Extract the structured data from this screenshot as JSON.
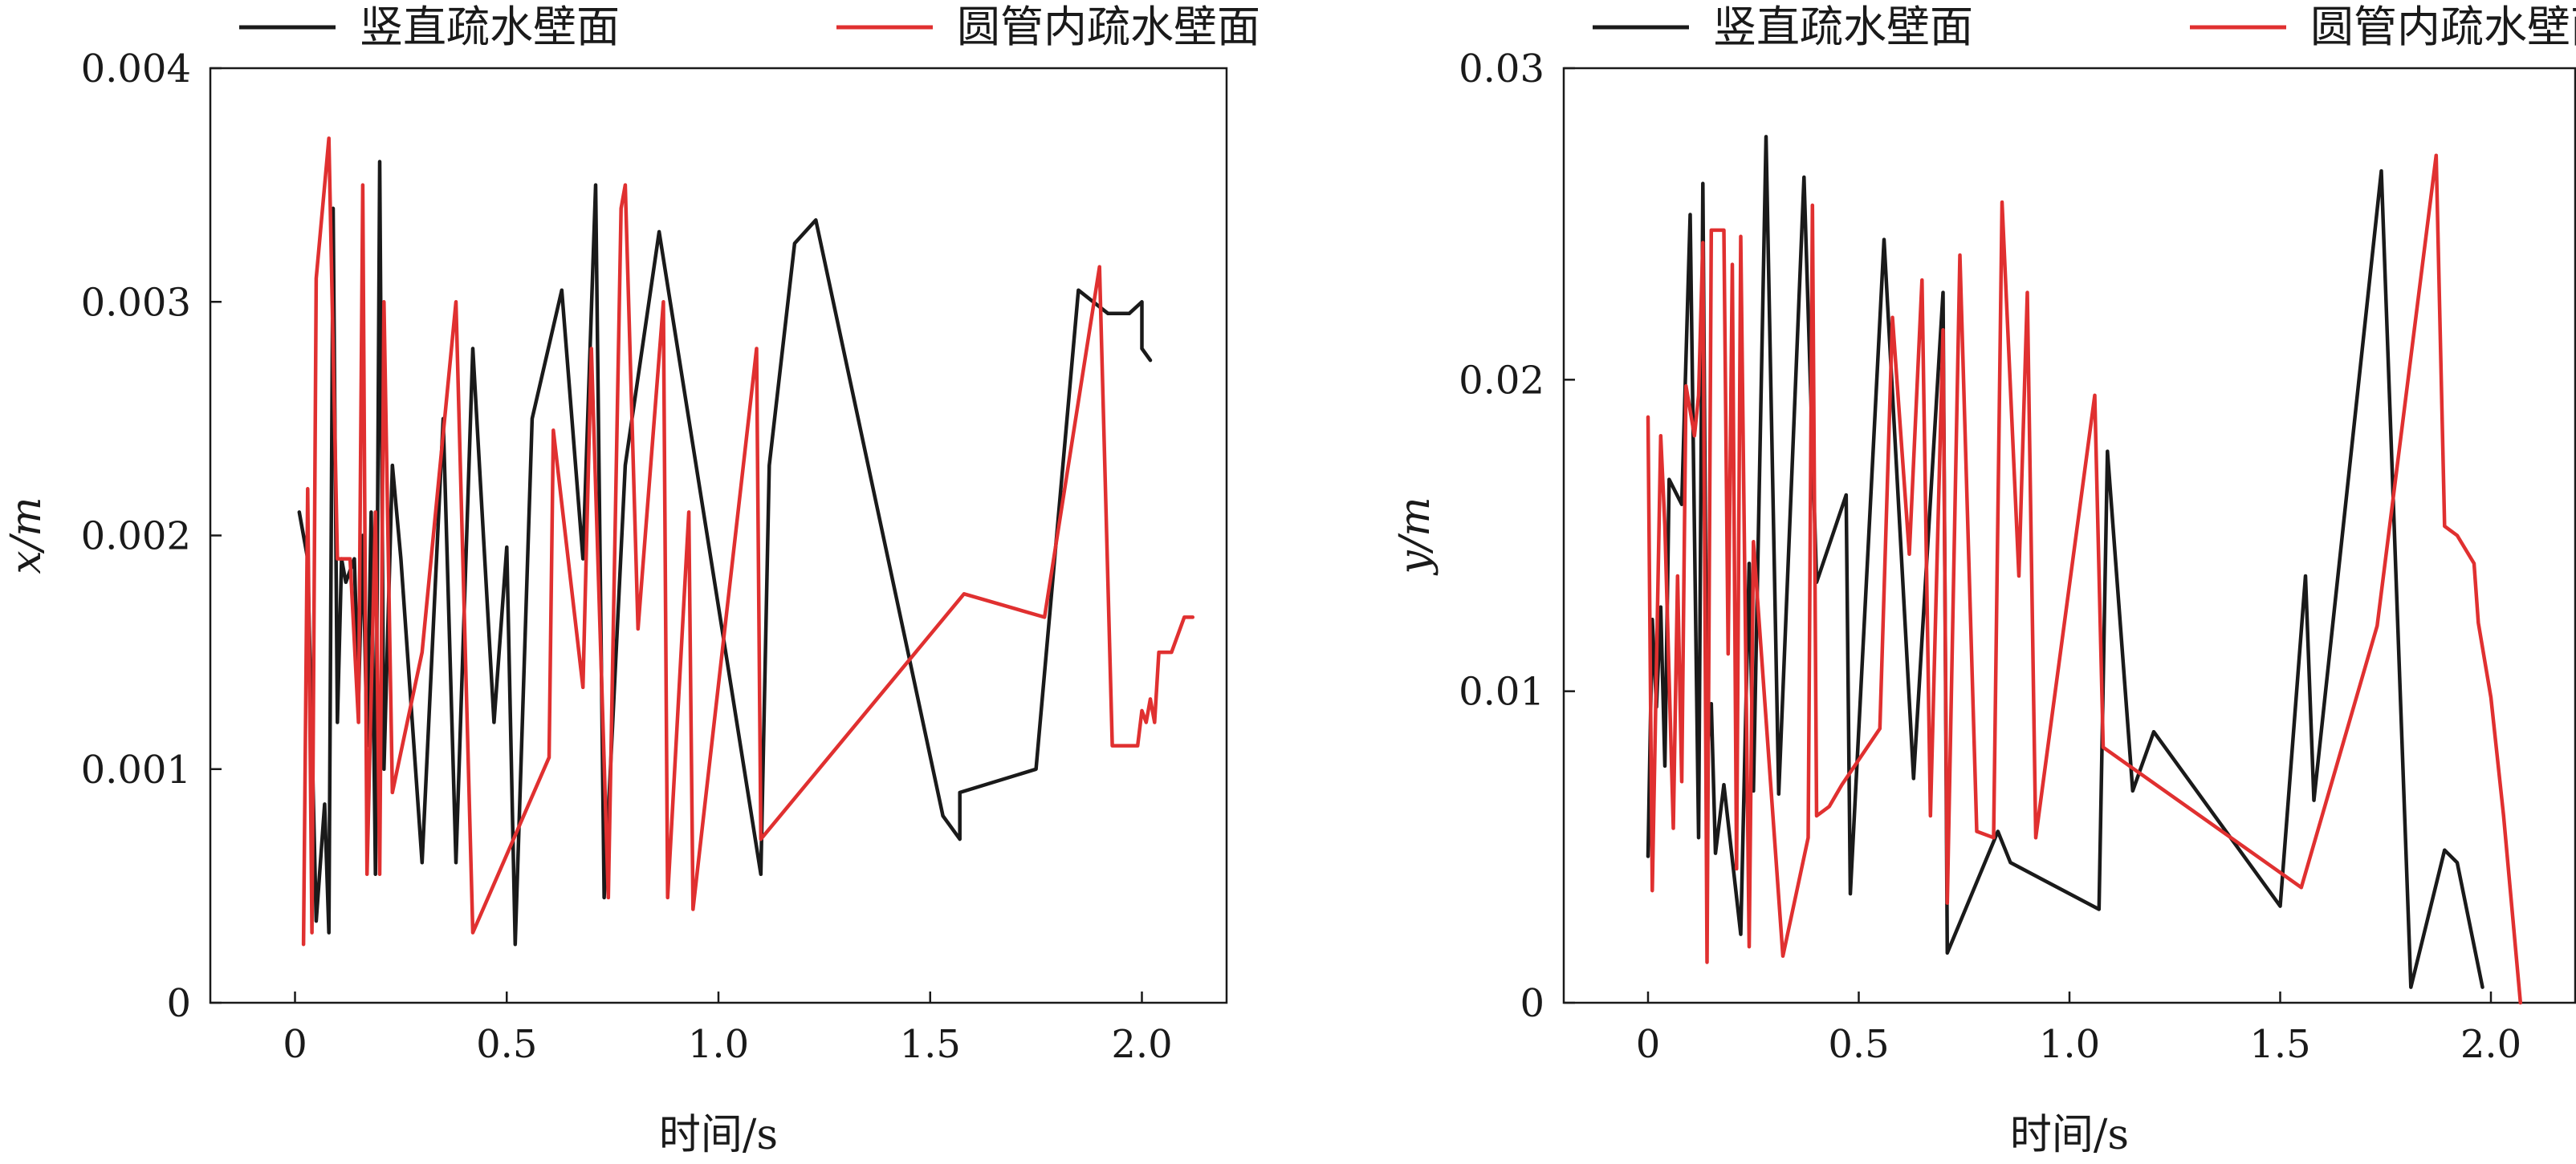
{
  "colors": {
    "vertical": "#1a1a1a",
    "pipe": "#e03030"
  },
  "chart_data": [
    {
      "type": "line",
      "xlabel": "时间/s",
      "ylabel": "x/m",
      "xlim": [
        -0.2,
        2.2
      ],
      "ylim": [
        0,
        0.004
      ],
      "xticks": [
        0,
        0.5,
        1.0,
        1.5,
        2.0
      ],
      "xtick_labels": [
        "0",
        "0.5",
        "1.0",
        "1.5",
        "2.0"
      ],
      "yticks": [
        0,
        0.001,
        0.002,
        0.003,
        0.004
      ],
      "ytick_labels": [
        "0",
        "0.001",
        "0.002",
        "0.003",
        "0.004"
      ],
      "legend_position": "top",
      "grid": false,
      "series": [
        {
          "name": "竖直疏水壁面",
          "color": "#1a1a1a",
          "points": [
            [
              0.01,
              0.0021
            ],
            [
              0.03,
              0.0019
            ],
            [
              0.05,
              0.00035
            ],
            [
              0.07,
              0.00085
            ],
            [
              0.08,
              0.0003
            ],
            [
              0.09,
              0.0034
            ],
            [
              0.1,
              0.0012
            ],
            [
              0.11,
              0.0019
            ],
            [
              0.12,
              0.0018
            ],
            [
              0.14,
              0.0019
            ],
            [
              0.15,
              0.0013
            ],
            [
              0.16,
              0.002
            ],
            [
              0.17,
              0.0011
            ],
            [
              0.18,
              0.0021
            ],
            [
              0.19,
              0.00055
            ],
            [
              0.2,
              0.0036
            ],
            [
              0.21,
              0.001
            ],
            [
              0.23,
              0.0023
            ],
            [
              0.25,
              0.0019
            ],
            [
              0.3,
              0.0006
            ],
            [
              0.35,
              0.0025
            ],
            [
              0.38,
              0.0006
            ],
            [
              0.42,
              0.0028
            ],
            [
              0.47,
              0.0012
            ],
            [
              0.5,
              0.00195
            ],
            [
              0.52,
              0.00025
            ],
            [
              0.56,
              0.0025
            ],
            [
              0.63,
              0.00305
            ],
            [
              0.68,
              0.0019
            ],
            [
              0.71,
              0.0035
            ],
            [
              0.73,
              0.00045
            ],
            [
              0.78,
              0.0023
            ],
            [
              0.86,
              0.0033
            ],
            [
              1.1,
              0.00055
            ],
            [
              1.12,
              0.0023
            ],
            [
              1.18,
              0.00325
            ],
            [
              1.23,
              0.00335
            ],
            [
              1.53,
              0.0008
            ],
            [
              1.57,
              0.0007
            ],
            [
              1.57,
              0.0009
            ],
            [
              1.75,
              0.001
            ],
            [
              1.85,
              0.00305
            ],
            [
              1.92,
              0.00295
            ],
            [
              1.97,
              0.00295
            ],
            [
              2.0,
              0.003
            ],
            [
              2.0,
              0.0028
            ],
            [
              2.02,
              0.00275
            ]
          ]
        },
        {
          "name": "圆管内疏水壁面",
          "color": "#e03030",
          "points": [
            [
              0.02,
              0.00025
            ],
            [
              0.03,
              0.0022
            ],
            [
              0.04,
              0.0003
            ],
            [
              0.05,
              0.0031
            ],
            [
              0.08,
              0.0037
            ],
            [
              0.1,
              0.0019
            ],
            [
              0.13,
              0.0019
            ],
            [
              0.15,
              0.0012
            ],
            [
              0.16,
              0.0035
            ],
            [
              0.17,
              0.00055
            ],
            [
              0.19,
              0.0021
            ],
            [
              0.2,
              0.00055
            ],
            [
              0.21,
              0.003
            ],
            [
              0.23,
              0.0009
            ],
            [
              0.3,
              0.0015
            ],
            [
              0.38,
              0.003
            ],
            [
              0.42,
              0.0003
            ],
            [
              0.6,
              0.00105
            ],
            [
              0.61,
              0.00245
            ],
            [
              0.68,
              0.00135
            ],
            [
              0.7,
              0.0028
            ],
            [
              0.74,
              0.00045
            ],
            [
              0.77,
              0.0034
            ],
            [
              0.78,
              0.0035
            ],
            [
              0.81,
              0.0016
            ],
            [
              0.87,
              0.003
            ],
            [
              0.88,
              0.00045
            ],
            [
              0.93,
              0.0021
            ],
            [
              0.94,
              0.0004
            ],
            [
              1.09,
              0.0028
            ],
            [
              1.1,
              0.0007
            ],
            [
              1.58,
              0.00175
            ],
            [
              1.77,
              0.00165
            ],
            [
              1.9,
              0.00315
            ],
            [
              1.93,
              0.0011
            ],
            [
              1.99,
              0.0011
            ],
            [
              2.0,
              0.00125
            ],
            [
              2.01,
              0.0012
            ],
            [
              2.02,
              0.0013
            ],
            [
              2.03,
              0.0012
            ],
            [
              2.04,
              0.0015
            ],
            [
              2.07,
              0.0015
            ],
            [
              2.1,
              0.00165
            ],
            [
              2.12,
              0.00165
            ]
          ]
        }
      ]
    },
    {
      "type": "line",
      "xlabel": "时间/s",
      "ylabel": "y/m",
      "xlim": [
        -0.2,
        2.2
      ],
      "ylim": [
        0,
        0.03
      ],
      "xticks": [
        0,
        0.5,
        1.0,
        1.5,
        2.0
      ],
      "xtick_labels": [
        "0",
        "0.5",
        "1.0",
        "1.5",
        "2.0"
      ],
      "yticks": [
        0,
        0.01,
        0.02,
        0.03
      ],
      "ytick_labels": [
        "0",
        "0.01",
        "0.02",
        "0.03"
      ],
      "legend_position": "top",
      "grid": false,
      "series": [
        {
          "name": "竖直疏水壁面",
          "color": "#1a1a1a",
          "points": [
            [
              0.0,
              0.0047
            ],
            [
              0.01,
              0.0123
            ],
            [
              0.02,
              0.0095
            ],
            [
              0.03,
              0.0127
            ],
            [
              0.04,
              0.0076
            ],
            [
              0.05,
              0.0168
            ],
            [
              0.08,
              0.016
            ],
            [
              0.1,
              0.0253
            ],
            [
              0.12,
              0.0053
            ],
            [
              0.13,
              0.0263
            ],
            [
              0.14,
              0.008
            ],
            [
              0.15,
              0.0096
            ],
            [
              0.16,
              0.0048
            ],
            [
              0.18,
              0.007
            ],
            [
              0.22,
              0.0022
            ],
            [
              0.24,
              0.0141
            ],
            [
              0.25,
              0.0068
            ],
            [
              0.28,
              0.0278
            ],
            [
              0.31,
              0.0067
            ],
            [
              0.37,
              0.0265
            ],
            [
              0.4,
              0.0135
            ],
            [
              0.47,
              0.0163
            ],
            [
              0.48,
              0.0035
            ],
            [
              0.56,
              0.0245
            ],
            [
              0.63,
              0.0072
            ],
            [
              0.7,
              0.0228
            ],
            [
              0.71,
              0.0016
            ],
            [
              0.83,
              0.0055
            ],
            [
              0.86,
              0.0045
            ],
            [
              1.07,
              0.003
            ],
            [
              1.09,
              0.0177
            ],
            [
              1.15,
              0.0068
            ],
            [
              1.2,
              0.0087
            ],
            [
              1.5,
              0.0031
            ],
            [
              1.56,
              0.0137
            ],
            [
              1.58,
              0.0065
            ],
            [
              1.74,
              0.0267
            ],
            [
              1.81,
              0.0005
            ],
            [
              1.89,
              0.0049
            ],
            [
              1.92,
              0.0045
            ],
            [
              1.98,
              0.0005
            ]
          ]
        },
        {
          "name": "圆管内疏水壁面",
          "color": "#e03030",
          "points": [
            [
              0.0,
              0.0188
            ],
            [
              0.01,
              0.0036
            ],
            [
              0.03,
              0.0182
            ],
            [
              0.04,
              0.0153
            ],
            [
              0.06,
              0.0056
            ],
            [
              0.07,
              0.0137
            ],
            [
              0.08,
              0.0071
            ],
            [
              0.09,
              0.0198
            ],
            [
              0.11,
              0.0182
            ],
            [
              0.12,
              0.0195
            ],
            [
              0.13,
              0.0244
            ],
            [
              0.14,
              0.0013
            ],
            [
              0.15,
              0.0248
            ],
            [
              0.18,
              0.0248
            ],
            [
              0.19,
              0.0112
            ],
            [
              0.2,
              0.0237
            ],
            [
              0.21,
              0.0043
            ],
            [
              0.22,
              0.0246
            ],
            [
              0.24,
              0.0018
            ],
            [
              0.25,
              0.0148
            ],
            [
              0.32,
              0.0015
            ],
            [
              0.38,
              0.0053
            ],
            [
              0.39,
              0.0256
            ],
            [
              0.4,
              0.006
            ],
            [
              0.43,
              0.0063
            ],
            [
              0.46,
              0.007
            ],
            [
              0.55,
              0.0088
            ],
            [
              0.58,
              0.022
            ],
            [
              0.62,
              0.0144
            ],
            [
              0.65,
              0.0232
            ],
            [
              0.67,
              0.006
            ],
            [
              0.7,
              0.0216
            ],
            [
              0.71,
              0.0032
            ],
            [
              0.74,
              0.024
            ],
            [
              0.78,
              0.0055
            ],
            [
              0.82,
              0.0053
            ],
            [
              0.84,
              0.0257
            ],
            [
              0.88,
              0.0137
            ],
            [
              0.9,
              0.0228
            ],
            [
              0.92,
              0.0053
            ],
            [
              1.06,
              0.0195
            ],
            [
              1.08,
              0.0082
            ],
            [
              1.55,
              0.0037
            ],
            [
              1.73,
              0.0121
            ],
            [
              1.87,
              0.0272
            ],
            [
              1.89,
              0.0153
            ],
            [
              1.92,
              0.015
            ],
            [
              1.96,
              0.0141
            ],
            [
              1.97,
              0.0122
            ],
            [
              2.0,
              0.0098
            ],
            [
              2.03,
              0.006
            ],
            [
              2.07,
              0.0
            ]
          ]
        }
      ]
    }
  ]
}
